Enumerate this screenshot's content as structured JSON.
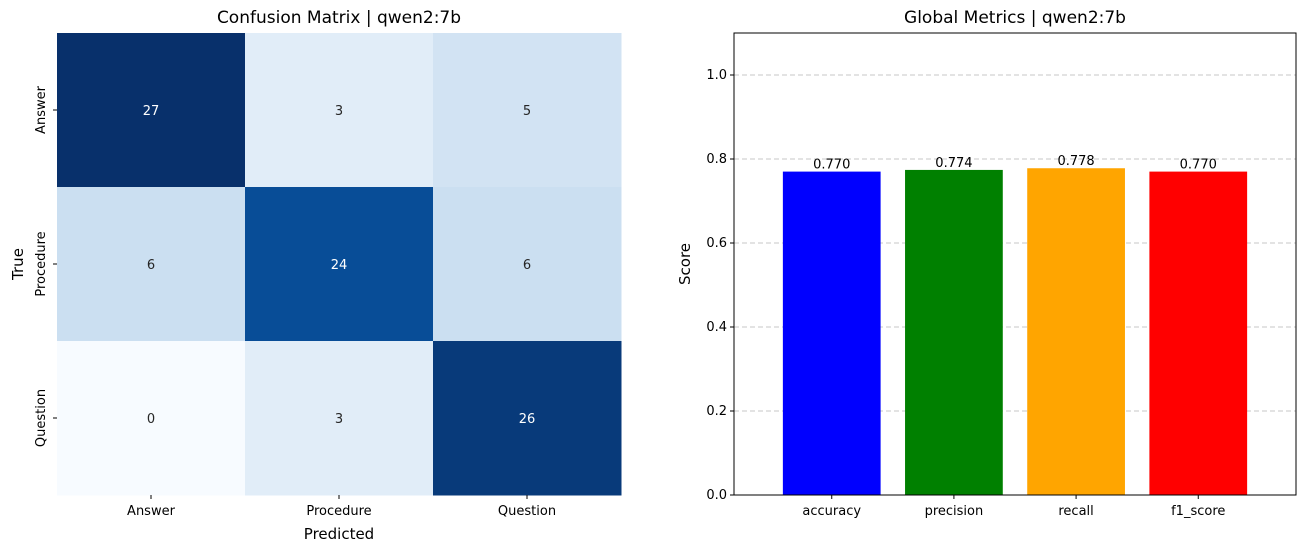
{
  "chart_data": [
    {
      "type": "heatmap",
      "title": "Confusion Matrix | qwen2:7b",
      "xlabel": "Predicted",
      "ylabel": "True",
      "x_categories": [
        "Answer",
        "Procedure",
        "Question"
      ],
      "y_categories": [
        "Answer",
        "Procedure",
        "Question"
      ],
      "values": [
        [
          27,
          3,
          5
        ],
        [
          6,
          24,
          6
        ],
        [
          0,
          3,
          26
        ]
      ],
      "colormap": "Blues",
      "vmin": 0,
      "vmax": 27
    },
    {
      "type": "bar",
      "title": "Global Metrics | qwen2:7b",
      "xlabel": "",
      "ylabel": "Score",
      "categories": [
        "accuracy",
        "precision",
        "recall",
        "f1_score"
      ],
      "values": [
        0.77,
        0.774,
        0.778,
        0.77
      ],
      "value_labels": [
        "0.770",
        "0.774",
        "0.778",
        "0.770"
      ],
      "colors": [
        "#0000ff",
        "#008000",
        "#ffa500",
        "#ff0000"
      ],
      "ylim": [
        0,
        1.1
      ],
      "yticks": [
        0.0,
        0.2,
        0.4,
        0.6,
        0.8,
        1.0
      ],
      "ytick_labels": [
        "0.0",
        "0.2",
        "0.4",
        "0.6",
        "0.8",
        "1.0"
      ],
      "grid": "y-dashed"
    }
  ]
}
